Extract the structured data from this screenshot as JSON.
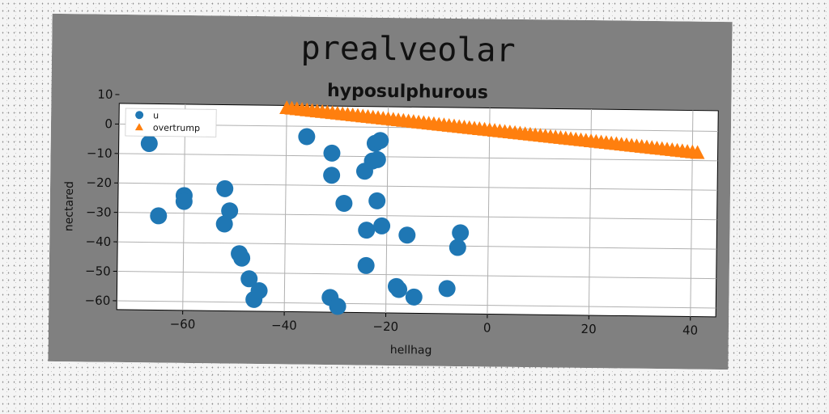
{
  "chart_data": {
    "type": "scatter",
    "title": "prealveolar",
    "subtitle": "hyposulphurous",
    "xlabel": "hellhag",
    "ylabel": "nectared",
    "xlim": [
      -73,
      45
    ],
    "ylim": [
      -63,
      7
    ],
    "xticks": [
      -60,
      -40,
      -20,
      0,
      20,
      40
    ],
    "yticks": [
      10,
      0,
      -10,
      -20,
      -30,
      -40,
      -50,
      -60
    ],
    "grid": true,
    "legend_position": "top-left",
    "series": [
      {
        "name": "u",
        "marker": "circle",
        "color": "#1f77b4",
        "points": [
          [
            -67,
            -6.5
          ],
          [
            -65,
            -31
          ],
          [
            -60,
            -24
          ],
          [
            -60,
            -26
          ],
          [
            -52,
            -21.5
          ],
          [
            -52,
            -33.5
          ],
          [
            -51,
            -29
          ],
          [
            -49,
            -43.5
          ],
          [
            -48.5,
            -45
          ],
          [
            -47,
            -52
          ],
          [
            -46,
            -59
          ],
          [
            -45,
            -56
          ],
          [
            -36,
            -3.5
          ],
          [
            -31,
            -16.5
          ],
          [
            -31,
            -9
          ],
          [
            -31,
            -58
          ],
          [
            -29.5,
            -61
          ],
          [
            -28.5,
            -26
          ],
          [
            -24.5,
            -15
          ],
          [
            -24,
            -35
          ],
          [
            -24,
            -47
          ],
          [
            -23,
            -11.5
          ],
          [
            -22.5,
            -5.5
          ],
          [
            -22,
            -25
          ],
          [
            -22,
            -11
          ],
          [
            -21.5,
            -4.5
          ],
          [
            -21,
            -33.5
          ],
          [
            -18,
            -54
          ],
          [
            -17.5,
            -55
          ],
          [
            -16,
            -36.5
          ],
          [
            -14.5,
            -57.5
          ],
          [
            -8,
            -54.5
          ],
          [
            -6,
            -40.5
          ],
          [
            -5.5,
            -35.5
          ]
        ]
      },
      {
        "name": "overtrump",
        "marker": "triangle",
        "color": "#ff7f0e",
        "line": {
          "x_start": -40,
          "y_start": 6,
          "x_end": 41,
          "y_end": -7.5,
          "count": 82
        }
      }
    ]
  },
  "colors": {
    "figure_background": "#808080",
    "plot_background": "#ffffff",
    "grid": "#b0b0b0"
  }
}
